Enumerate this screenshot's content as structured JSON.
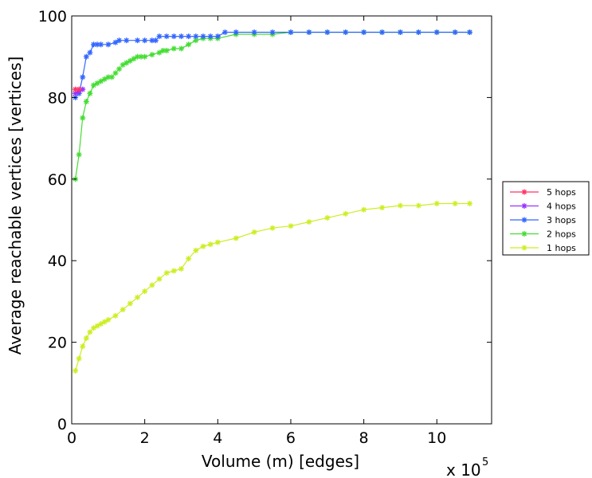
{
  "chart_data": {
    "type": "line",
    "title": "",
    "xlabel": "Volume (m) [edges]",
    "ylabel": "Average reachable vertices [vertices]",
    "x_multiplier_label": "x 10",
    "x_multiplier_exponent": "5",
    "xlim": [
      0,
      11.5
    ],
    "ylim": [
      0,
      100
    ],
    "x_ticks": [
      0,
      2,
      4,
      6,
      8,
      10
    ],
    "x_tick_labels": [
      "0",
      "2",
      "4",
      "6",
      "8",
      "10"
    ],
    "y_ticks": [
      0,
      20,
      40,
      60,
      80,
      100
    ],
    "y_tick_labels": [
      "0",
      "20",
      "40",
      "60",
      "80",
      "100"
    ],
    "grid": false,
    "legend_position": "right",
    "marker": "asterisk",
    "series": [
      {
        "name": "5 hops",
        "color": "#ff3366",
        "x": [
          0.1,
          0.2
        ],
        "y": [
          82,
          82
        ]
      },
      {
        "name": "4 hops",
        "color": "#9933ff",
        "x": [
          0.1,
          0.2,
          0.3
        ],
        "y": [
          81,
          81.5,
          82
        ]
      },
      {
        "name": "3 hops",
        "color": "#3366ff",
        "x": [
          0.1,
          0.2,
          0.3,
          0.4,
          0.5,
          0.6,
          0.7,
          0.8,
          1.0,
          1.2,
          1.3,
          1.5,
          1.8,
          2.0,
          2.2,
          2.3,
          2.4,
          2.6,
          2.8,
          3.0,
          3.2,
          3.4,
          3.6,
          3.8,
          4.0,
          4.2,
          4.5,
          5.0,
          5.5,
          6.0,
          6.5,
          7.0,
          7.5,
          8.0,
          8.5,
          9.0,
          9.5,
          10.0,
          10.5,
          10.9
        ],
        "y": [
          80,
          81,
          85,
          90,
          91,
          93,
          93,
          93,
          93,
          93.5,
          94,
          94,
          94,
          94,
          94,
          94,
          95,
          95,
          95,
          95,
          95,
          95,
          95,
          95,
          95,
          96,
          96,
          96,
          96,
          96,
          96,
          96,
          96,
          96,
          96,
          96,
          96,
          96,
          96,
          96
        ]
      },
      {
        "name": "2 hops",
        "color": "#44dd33",
        "x": [
          0.1,
          0.2,
          0.3,
          0.4,
          0.5,
          0.6,
          0.7,
          0.8,
          0.9,
          1.0,
          1.1,
          1.2,
          1.3,
          1.4,
          1.5,
          1.6,
          1.7,
          1.8,
          1.9,
          2.0,
          2.2,
          2.4,
          2.5,
          2.6,
          2.8,
          3.0,
          3.2,
          3.4,
          3.6,
          3.8,
          4.0,
          4.5,
          5.0,
          5.5,
          6.0,
          6.5,
          7.0,
          7.5,
          8.0,
          8.5,
          9.0,
          9.5,
          10.0,
          10.5,
          10.9
        ],
        "y": [
          60,
          66,
          75,
          79,
          81,
          83,
          83.5,
          84,
          84.5,
          85,
          85,
          86,
          87,
          88,
          88.5,
          89,
          89.5,
          90,
          90,
          90,
          90.5,
          91,
          91.5,
          91.5,
          92,
          92,
          93,
          94,
          94.5,
          94.5,
          94.5,
          95.5,
          95.5,
          95.5,
          96,
          96,
          96,
          96,
          96,
          96,
          96,
          96,
          96,
          96,
          96
        ]
      },
      {
        "name": "1 hops",
        "color": "#ccee22",
        "x": [
          0.1,
          0.2,
          0.3,
          0.4,
          0.5,
          0.6,
          0.7,
          0.8,
          0.9,
          1.0,
          1.2,
          1.4,
          1.6,
          1.8,
          2.0,
          2.2,
          2.4,
          2.6,
          2.8,
          3.0,
          3.2,
          3.4,
          3.6,
          3.8,
          4.0,
          4.5,
          5.0,
          5.5,
          6.0,
          6.5,
          7.0,
          7.5,
          8.0,
          8.5,
          9.0,
          9.5,
          10.0,
          10.5,
          10.9
        ],
        "y": [
          13,
          16,
          19,
          21,
          22.5,
          23.5,
          24,
          24.5,
          25,
          25.5,
          26.5,
          28,
          29.5,
          31,
          32.5,
          34,
          35.5,
          37,
          37.5,
          38,
          40.5,
          42.5,
          43.5,
          44,
          44.5,
          45.5,
          47,
          48,
          48.5,
          49.5,
          50.5,
          51.5,
          52.5,
          53,
          53.5,
          53.5,
          54,
          54,
          54
        ]
      }
    ]
  }
}
